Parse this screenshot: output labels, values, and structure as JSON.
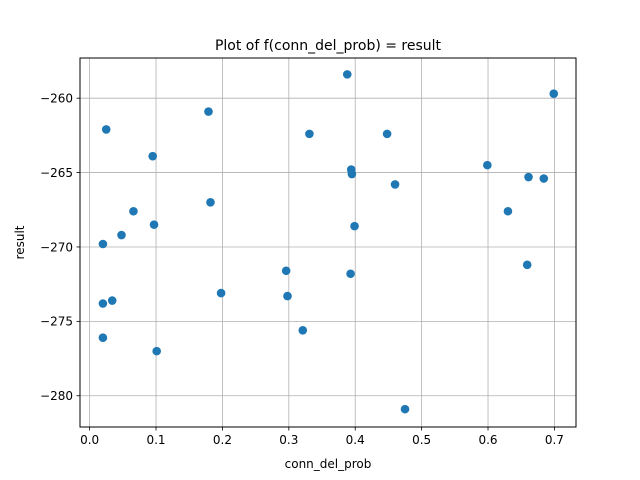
{
  "chart_data": {
    "type": "scatter",
    "title": "Plot of f(conn_del_prob) = result",
    "xlabel": "conn_del_prob",
    "ylabel": "result",
    "xlim": [
      -0.0145,
      0.7325
    ],
    "ylim": [
      -282.1,
      -257.3
    ],
    "xticks": [
      0.0,
      0.1,
      0.2,
      0.3,
      0.4,
      0.5,
      0.6,
      0.7
    ],
    "xtick_labels": [
      "0.0",
      "0.1",
      "0.2",
      "0.3",
      "0.4",
      "0.5",
      "0.6",
      "0.7"
    ],
    "yticks": [
      -280,
      -275,
      -270,
      -265,
      -260
    ],
    "ytick_labels": [
      "−280",
      "−275",
      "−270",
      "−265",
      "−260"
    ],
    "grid": true,
    "point_color": "#1f77b4",
    "points": [
      {
        "x": 0.025,
        "y": -262.1
      },
      {
        "x": 0.02,
        "y": -269.8
      },
      {
        "x": 0.02,
        "y": -273.8
      },
      {
        "x": 0.02,
        "y": -276.1
      },
      {
        "x": 0.034,
        "y": -273.6
      },
      {
        "x": 0.048,
        "y": -269.2
      },
      {
        "x": 0.066,
        "y": -267.6
      },
      {
        "x": 0.095,
        "y": -263.9
      },
      {
        "x": 0.097,
        "y": -268.5
      },
      {
        "x": 0.101,
        "y": -277.0
      },
      {
        "x": 0.179,
        "y": -260.9
      },
      {
        "x": 0.182,
        "y": -267.0
      },
      {
        "x": 0.198,
        "y": -273.1
      },
      {
        "x": 0.296,
        "y": -271.6
      },
      {
        "x": 0.298,
        "y": -273.3
      },
      {
        "x": 0.321,
        "y": -275.6
      },
      {
        "x": 0.331,
        "y": -262.4
      },
      {
        "x": 0.388,
        "y": -258.4
      },
      {
        "x": 0.393,
        "y": -271.8
      },
      {
        "x": 0.394,
        "y": -264.8
      },
      {
        "x": 0.395,
        "y": -265.1
      },
      {
        "x": 0.399,
        "y": -268.6
      },
      {
        "x": 0.448,
        "y": -262.4
      },
      {
        "x": 0.46,
        "y": -265.8
      },
      {
        "x": 0.475,
        "y": -280.9
      },
      {
        "x": 0.599,
        "y": -264.5
      },
      {
        "x": 0.63,
        "y": -267.6
      },
      {
        "x": 0.659,
        "y": -271.2
      },
      {
        "x": 0.661,
        "y": -265.3
      },
      {
        "x": 0.684,
        "y": -265.4
      },
      {
        "x": 0.699,
        "y": -259.7
      }
    ]
  }
}
